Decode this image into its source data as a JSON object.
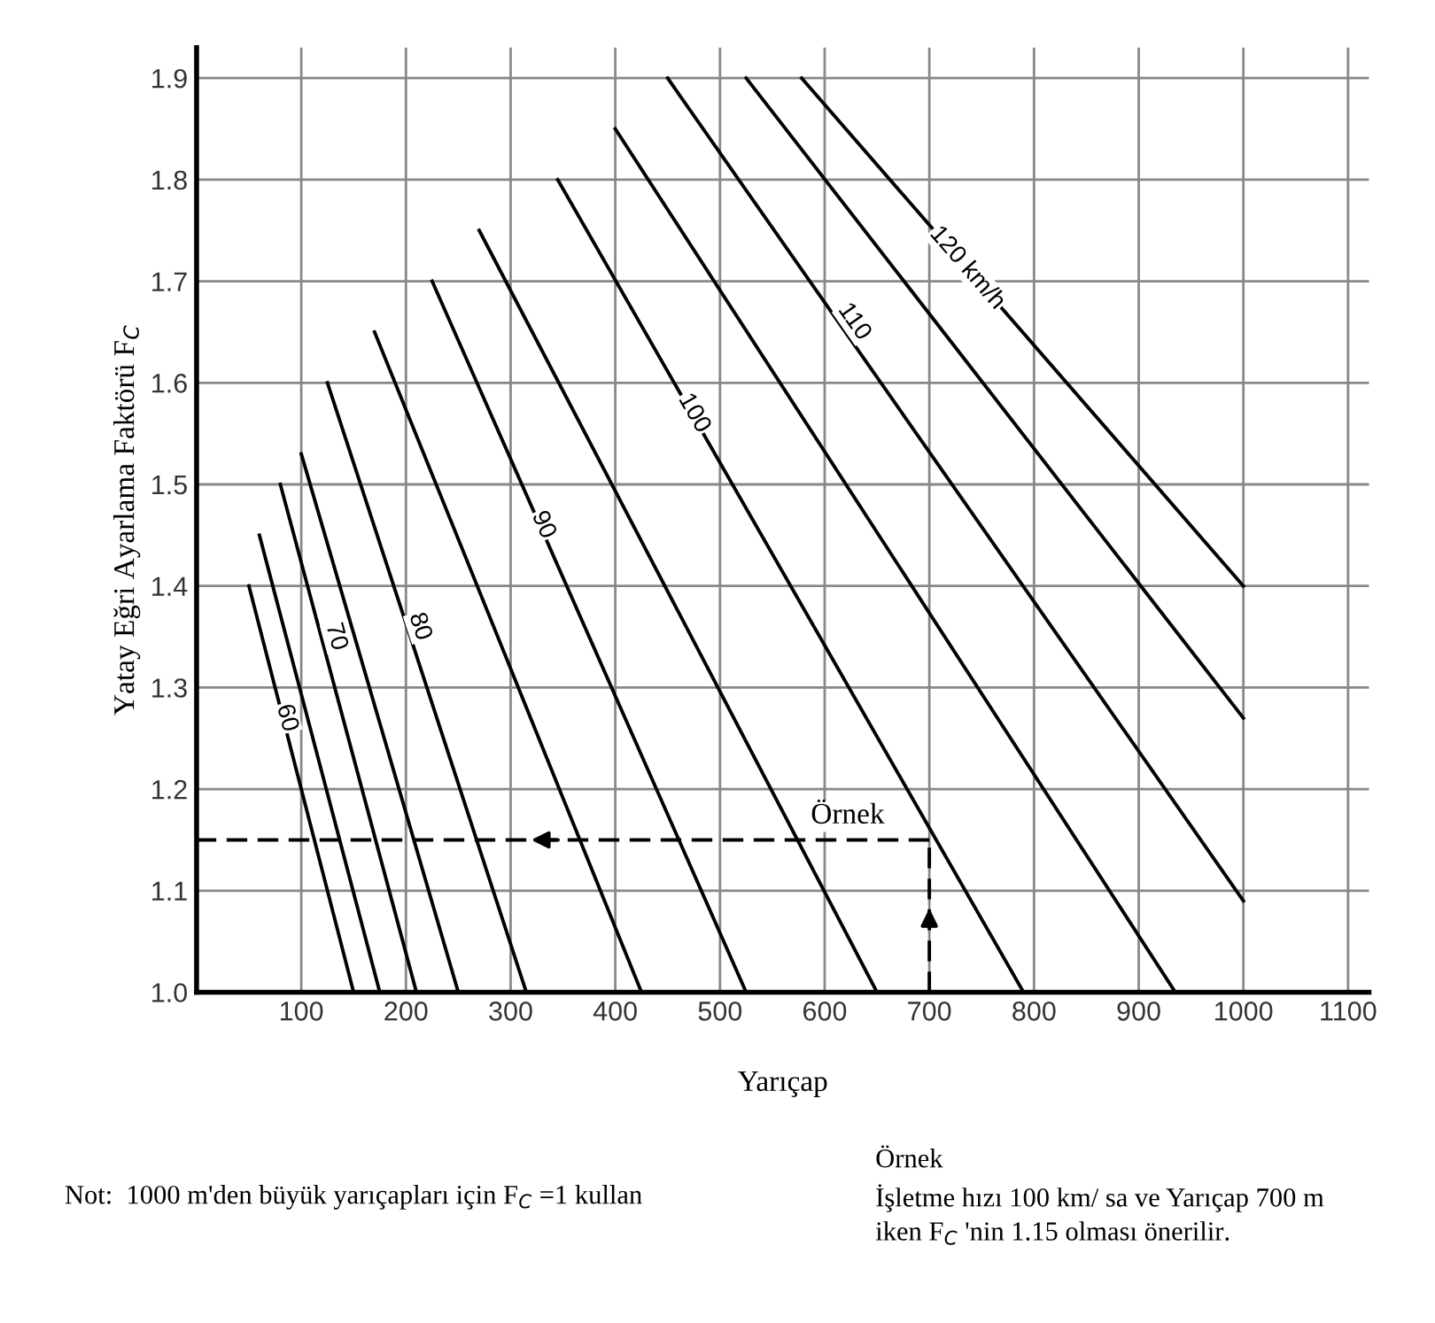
{
  "chart_data": {
    "type": "line",
    "xlabel": "Yarıçap",
    "ylabel": "Yatay Eğri Ayarlama Faktörü F$_{C}$",
    "xlim": [
      0,
      1120
    ],
    "ylim": [
      1.0,
      1.93
    ],
    "xticks": [
      100,
      200,
      300,
      400,
      500,
      600,
      700,
      800,
      900,
      1000,
      1100
    ],
    "yticks": [
      {
        "value": 1.0,
        "label": "1.0"
      },
      1.1,
      1.2,
      1.3,
      1.4,
      1.5,
      1.6,
      1.7,
      1.8,
      1.9
    ],
    "grid": true,
    "line_style": "solid",
    "marker": "none",
    "series": [
      {
        "color": "#000000",
        "x": [
          50,
          150
        ],
        "values": [
          1.4,
          1.0
        ]
      },
      {
        "color": "#000000",
        "x": [
          60,
          175
        ],
        "values": [
          1.45,
          1.0
        ]
      },
      {
        "color": "#000000",
        "x": [
          80,
          210
        ],
        "values": [
          1.5,
          1.0
        ]
      },
      {
        "color": "#000000",
        "x": [
          100,
          250
        ],
        "values": [
          1.53,
          1.0
        ]
      },
      {
        "color": "#000000",
        "x": [
          125,
          315
        ],
        "values": [
          1.6,
          1.0
        ]
      },
      {
        "color": "#000000",
        "x": [
          170,
          425
        ],
        "values": [
          1.65,
          1.0
        ]
      },
      {
        "color": "#000000",
        "x": [
          225,
          525
        ],
        "values": [
          1.7,
          1.0
        ]
      },
      {
        "color": "#000000",
        "x": [
          270,
          650
        ],
        "values": [
          1.75,
          1.0
        ]
      },
      {
        "color": "#000000",
        "x": [
          345,
          790
        ],
        "values": [
          1.8,
          1.0
        ]
      },
      {
        "color": "#000000",
        "x": [
          400,
          935
        ],
        "values": [
          1.85,
          1.0
        ]
      },
      {
        "color": "#000000",
        "x": [
          450,
          1000
        ],
        "values": [
          1.9,
          1.09
        ]
      },
      {
        "color": "#000000",
        "x": [
          525,
          1000
        ],
        "values": [
          1.9,
          1.27
        ]
      },
      {
        "color": "#000000",
        "x": [
          578,
          1000
        ],
        "values": [
          1.9,
          1.4
        ]
      },
      {
        "color": "#000000",
        "x": [
          700,
          0
        ],
        "values": [
          1.15,
          1.15
        ],
        "line_style": "dashed"
      },
      {
        "color": "#000000",
        "x": [
          700,
          700
        ],
        "values": [
          1.0,
          1.15
        ],
        "line_style": "dashed"
      }
    ],
    "annotations": [
      {
        "text": "60",
        "x": 86,
        "y": 1.27
      },
      {
        "text": "70",
        "x": 133,
        "y": 1.35
      },
      {
        "text": "80",
        "x": 213,
        "y": 1.36
      },
      {
        "text": "90",
        "x": 331,
        "y": 1.46
      },
      {
        "text": "100",
        "x": 475,
        "y": 1.57
      },
      {
        "text": "110",
        "x": 628,
        "y": 1.66
      },
      {
        "text": "120 km/h",
        "x": 736,
        "y": 1.713
      },
      "Örnek",
      "Not:  1000 m'den büyük yarıçapları için F$_{C}$ =1 kullan",
      "Örnek\nİşletme hızı 100 km/ sa ve Yarıçap 700 m\niken F$_{C}$ 'nin 1.15 olması önerilir."
    ]
  }
}
